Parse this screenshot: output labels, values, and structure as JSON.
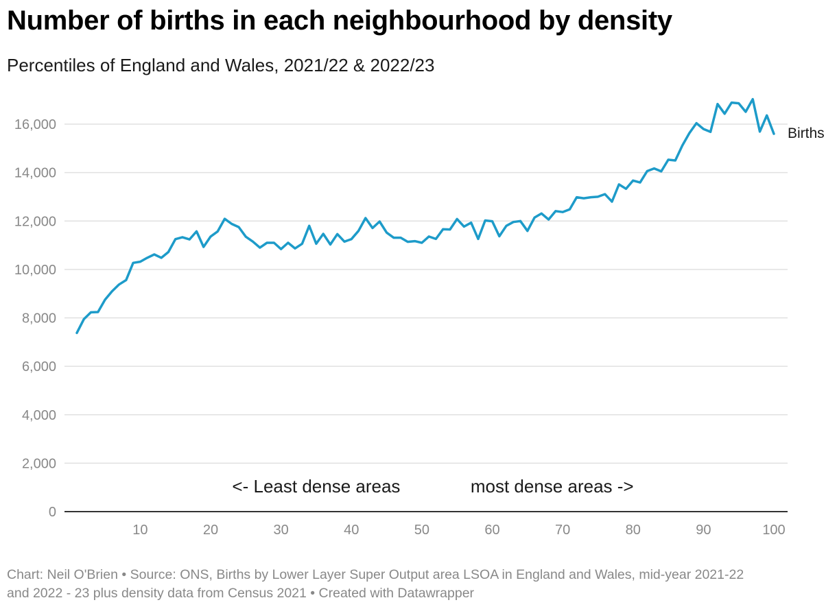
{
  "title": "Number of births in each neighbourhood by density",
  "subtitle": "Percentiles of England and Wales, 2021/22 & 2022/23",
  "footer": {
    "line1": "Chart: Neil O'Brien • Source: ONS, Births by Lower Layer Super Output area LSOA in England and Wales, mid-year 2021-22",
    "line2": "and 2022 - 23 plus density data from Census 2021  • Created with Datawrapper"
  },
  "chart_data": {
    "type": "line",
    "xlabel": "",
    "ylabel": "",
    "xlim": [
      0,
      100
    ],
    "ylim": [
      0,
      16500
    ],
    "x_ticks": [
      10,
      20,
      30,
      40,
      50,
      60,
      70,
      80,
      90,
      100
    ],
    "y_ticks": [
      0,
      2000,
      4000,
      6000,
      8000,
      10000,
      12000,
      14000,
      16000
    ],
    "y_tick_labels": [
      "0",
      "2,000",
      "4,000",
      "6,000",
      "8,000",
      "10,000",
      "12,000",
      "14,000",
      "16,000"
    ],
    "grid": true,
    "line_color": "#1d9bc9",
    "annotations": [
      {
        "text": "<- Least dense areas",
        "x": 35,
        "y": 1050
      },
      {
        "text": "most dense areas ->",
        "x": 68.5,
        "y": 1050
      }
    ],
    "series": [
      {
        "name": "Births",
        "x": [
          1,
          2,
          3,
          4,
          5,
          6,
          7,
          8,
          9,
          10,
          11,
          12,
          13,
          14,
          15,
          16,
          17,
          18,
          19,
          20,
          21,
          22,
          23,
          24,
          25,
          26,
          27,
          28,
          29,
          30,
          31,
          32,
          33,
          34,
          35,
          36,
          37,
          38,
          39,
          40,
          41,
          42,
          43,
          44,
          45,
          46,
          47,
          48,
          49,
          50,
          51,
          52,
          53,
          54,
          55,
          56,
          57,
          58,
          59,
          60,
          61,
          62,
          63,
          64,
          65,
          66,
          67,
          68,
          69,
          70,
          71,
          72,
          73,
          74,
          75,
          76,
          77,
          78,
          79,
          80,
          81,
          82,
          83,
          84,
          85,
          86,
          87,
          88,
          89,
          90,
          91,
          92,
          93,
          94,
          95,
          96,
          97,
          98,
          99,
          100
        ],
        "values": [
          7380,
          7950,
          8230,
          8240,
          8750,
          9100,
          9380,
          9560,
          10270,
          10320,
          10480,
          10620,
          10480,
          10720,
          11250,
          11330,
          11240,
          11570,
          10930,
          11360,
          11570,
          12090,
          11880,
          11750,
          11350,
          11150,
          10900,
          11100,
          11100,
          10840,
          11100,
          10870,
          11060,
          11800,
          11060,
          11470,
          11030,
          11460,
          11150,
          11250,
          11590,
          12120,
          11710,
          11980,
          11520,
          11310,
          11310,
          11140,
          11170,
          11100,
          11360,
          11260,
          11660,
          11650,
          12080,
          11770,
          11930,
          11260,
          12020,
          11990,
          11370,
          11800,
          11960,
          12000,
          11590,
          12140,
          12310,
          12060,
          12410,
          12370,
          12480,
          12980,
          12940,
          12980,
          13000,
          13110,
          12800,
          13510,
          13330,
          13670,
          13590,
          14060,
          14170,
          14050,
          14530,
          14500,
          15120,
          15630,
          16040,
          15800,
          15680,
          16830,
          16430,
          16890,
          16860,
          16510,
          17030,
          15690,
          16360,
          15600
        ]
      }
    ]
  }
}
